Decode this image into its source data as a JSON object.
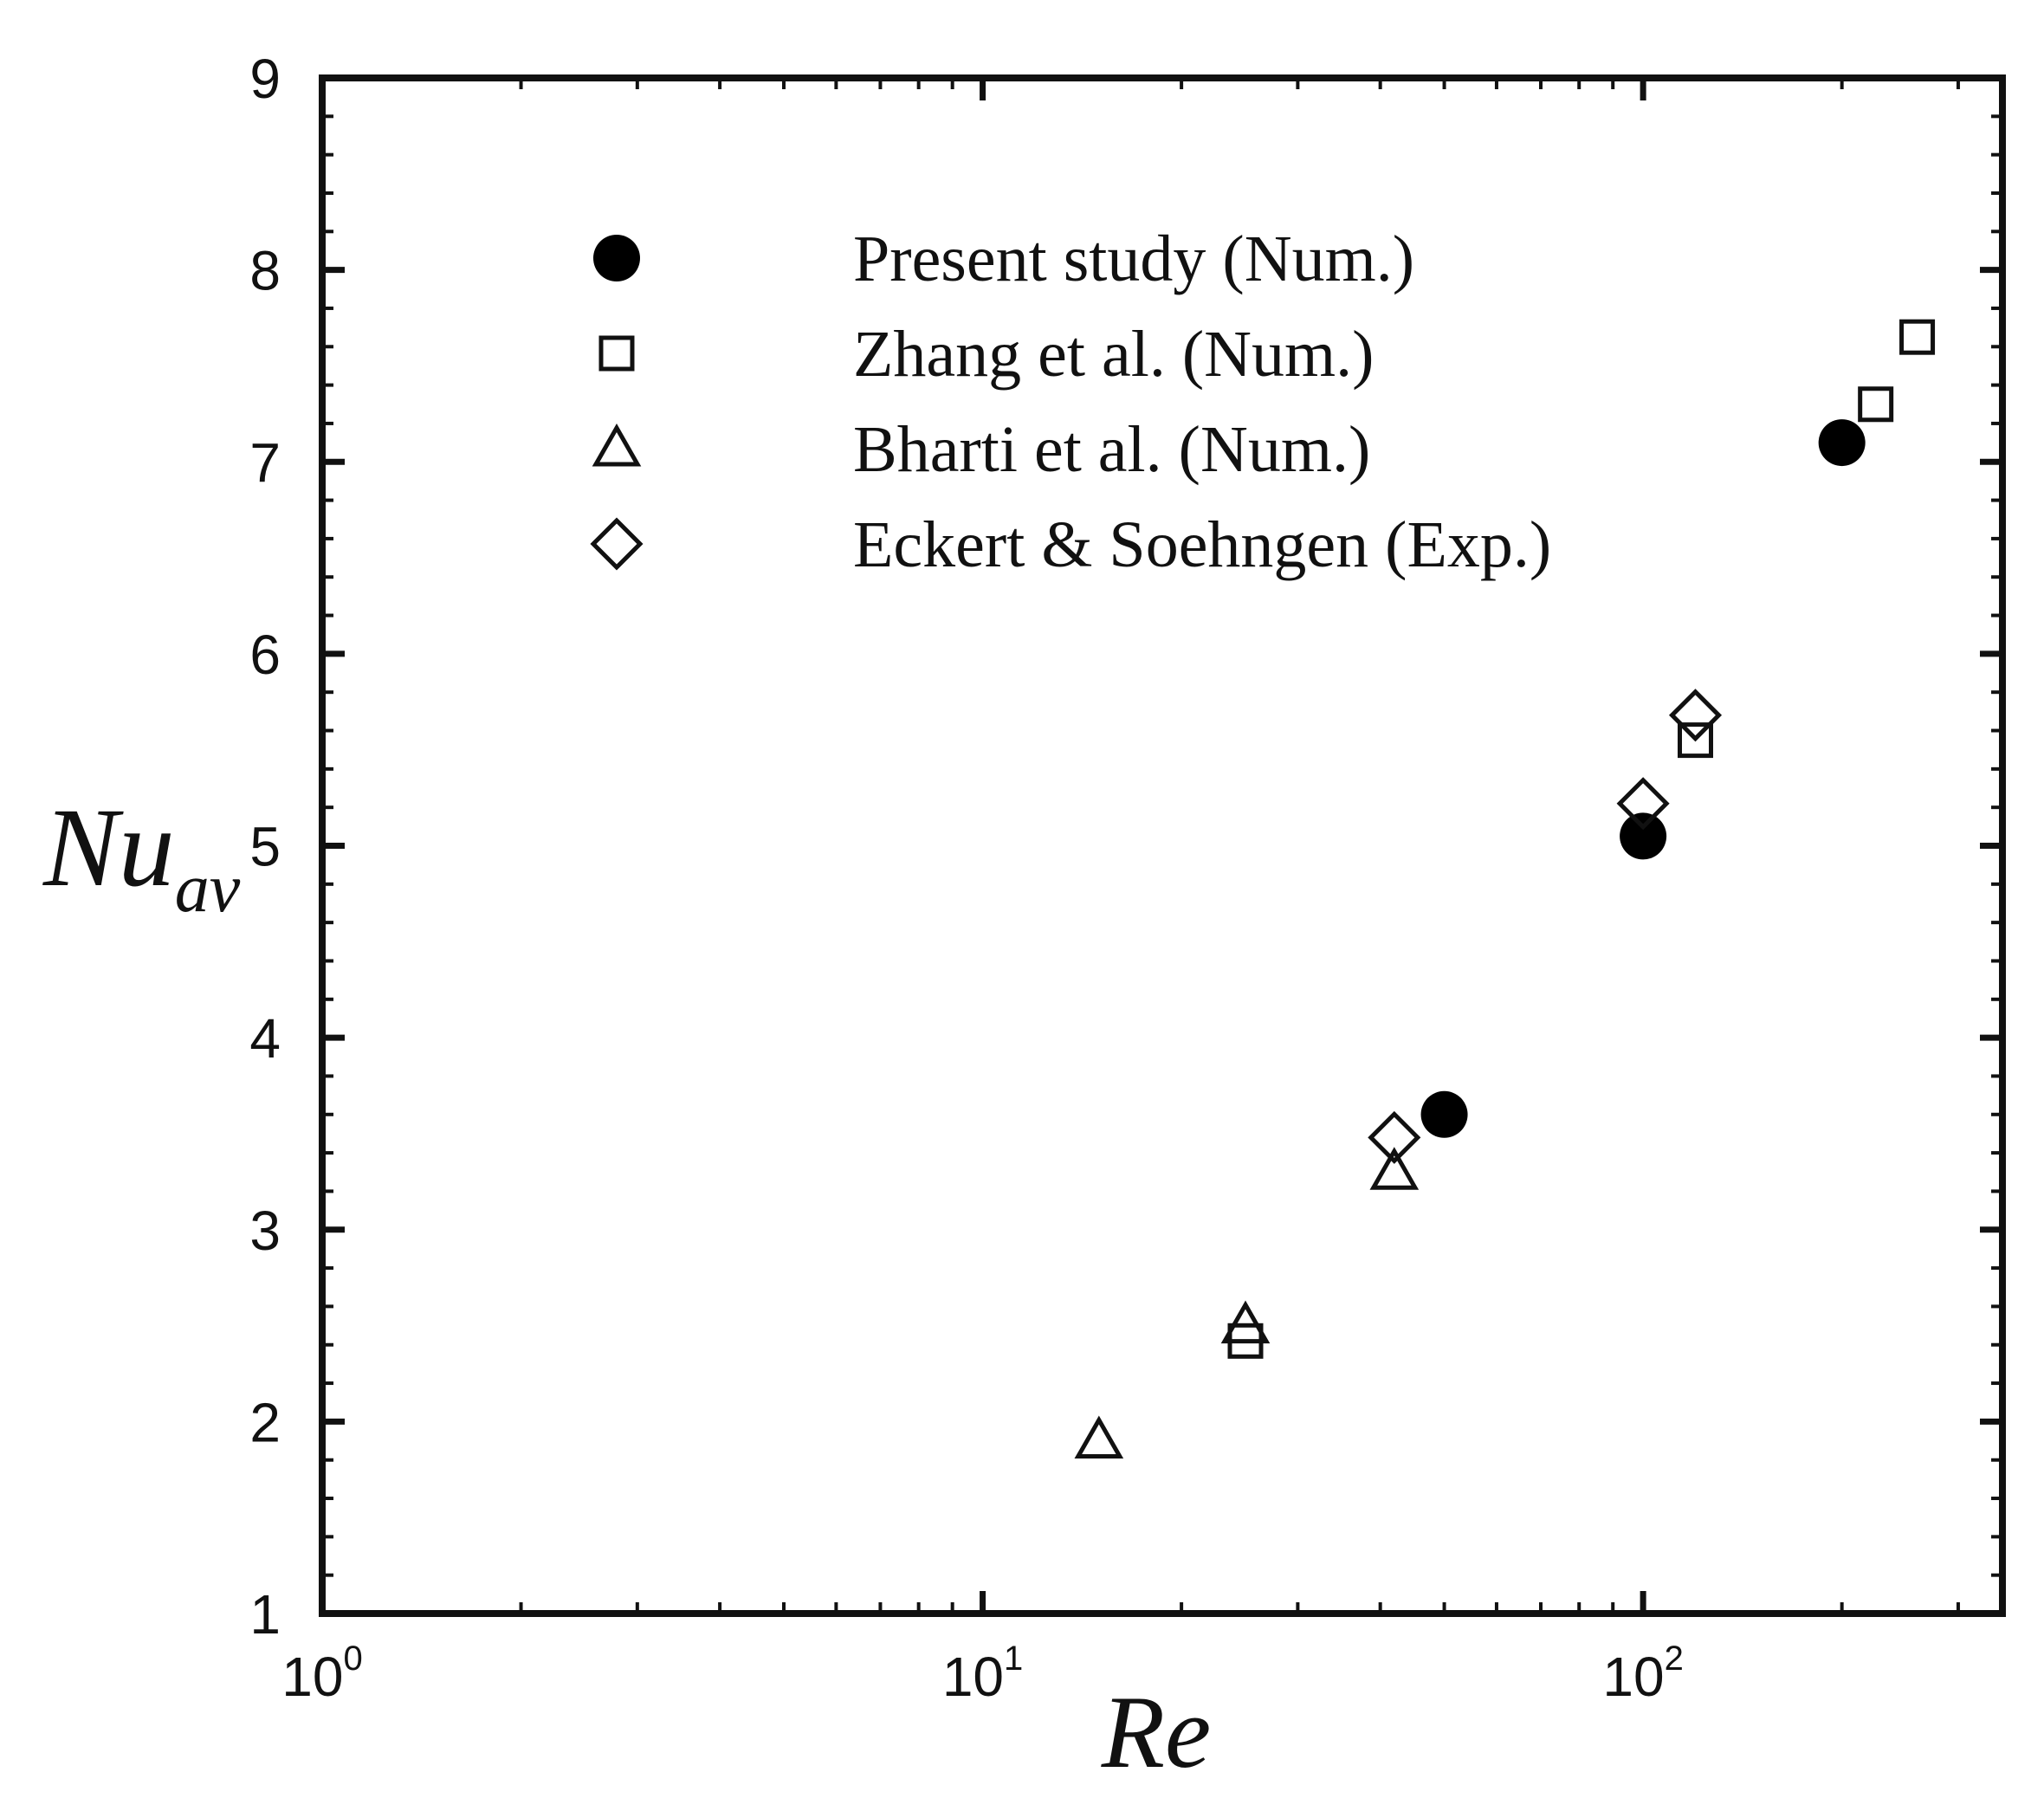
{
  "chart_data": {
    "type": "scatter",
    "x_scale": "log",
    "xlim": [
      1,
      350
    ],
    "ylim": [
      1,
      9
    ],
    "xlabel": "Re",
    "ylabel": "Nu",
    "ylabel_sub": "av",
    "x_ticks": [
      {
        "value": 1,
        "base": "10",
        "exp": "0"
      },
      {
        "value": 10,
        "base": "10",
        "exp": "1"
      },
      {
        "value": 100,
        "base": "10",
        "exp": "2"
      }
    ],
    "y_ticks": [
      1,
      2,
      3,
      4,
      5,
      6,
      7,
      8,
      9
    ],
    "legend_position": "top-left",
    "series": [
      {
        "name": "Present study (Num.)",
        "marker": "filled-circle",
        "points": [
          {
            "x": 50,
            "y": 3.6
          },
          {
            "x": 100,
            "y": 5.05
          },
          {
            "x": 200,
            "y": 7.1
          }
        ]
      },
      {
        "name": "Zhang et al. (Num.)",
        "marker": "open-square",
        "points": [
          {
            "x": 25,
            "y": 2.42
          },
          {
            "x": 120,
            "y": 5.55
          },
          {
            "x": 225,
            "y": 7.3
          },
          {
            "x": 260,
            "y": 7.65
          }
        ]
      },
      {
        "name": "Bharti et al. (Num.)",
        "marker": "open-triangle",
        "points": [
          {
            "x": 15,
            "y": 1.9
          },
          {
            "x": 25,
            "y": 2.5
          },
          {
            "x": 42,
            "y": 3.3
          }
        ]
      },
      {
        "name": "Eckert & Soehngen (Exp.)",
        "marker": "open-diamond",
        "points": [
          {
            "x": 42,
            "y": 3.48
          },
          {
            "x": 100,
            "y": 5.22
          },
          {
            "x": 120,
            "y": 5.68
          }
        ]
      }
    ]
  }
}
